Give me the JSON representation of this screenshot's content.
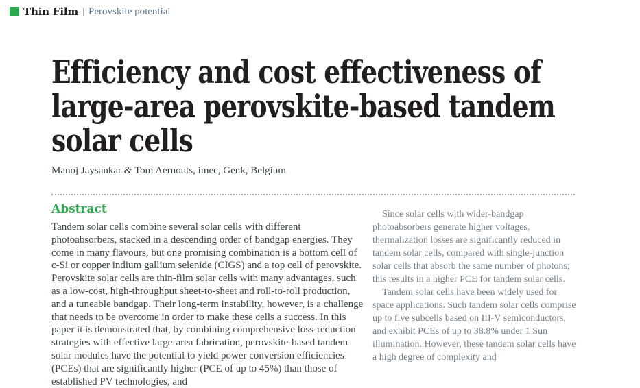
{
  "theme": {
    "accent_green": "#2bab4e",
    "topic_slate": "#5b7384",
    "title_black": "#231f20",
    "body_dark": "#3c4746",
    "body_light": "#75828c"
  },
  "kicker": {
    "section": "Thin Film",
    "separator": "|",
    "topic": "Perovskite potential"
  },
  "article": {
    "title_lines": [
      "Efficiency and cost effectiveness of",
      "large-area perovskite-based tandem",
      "solar cells"
    ],
    "byline": "Manoj Jaysankar & Tom Aernouts, imec, Genk, Belgium"
  },
  "abstract": {
    "heading": "Abstract",
    "body": "Tandem solar cells combine several solar cells with different photoabsorbers, stacked in a descending order of bandgap energies. They come in many flavours, but one promising combination is a bottom cell of c-Si or copper indium gallium selenide (CIGS) and a top cell of perovskite. Perovskite solar cells are thin-film solar cells with many advantages, such as a low-cost, high-throughput sheet-to-sheet and roll-to-roll production, and a tuneable bandgap. Their long-term instability, however, is a challenge that needs to be overcome in order to make these cells a success. In this paper it is demonstrated that, by combining comprehensive loss-reduction strategies with effective large-area fabrication, perovskite-based tandem solar modules have the potential to yield power conversion efficiencies (PCEs) that are significantly higher (PCE of up to 45%) than those of established PV technologies, and"
  },
  "right_column": {
    "paragraphs": [
      "Since solar cells with wider-bandgap photoabsorbers generate higher voltages, thermalization losses are significantly reduced in tandem solar cells, compared with single-junction solar cells that absorb the same number of photons; this results in a higher PCE for tandem solar cells.",
      "Tandem solar cells have been widely used for space applications. Such tandem solar cells comprise up to five subcells based on III-V semiconductors, and exhibit PCEs of up to 38.8% under 1 Sun illumination. However, these tandem solar cells have a high degree of complexity and"
    ]
  }
}
